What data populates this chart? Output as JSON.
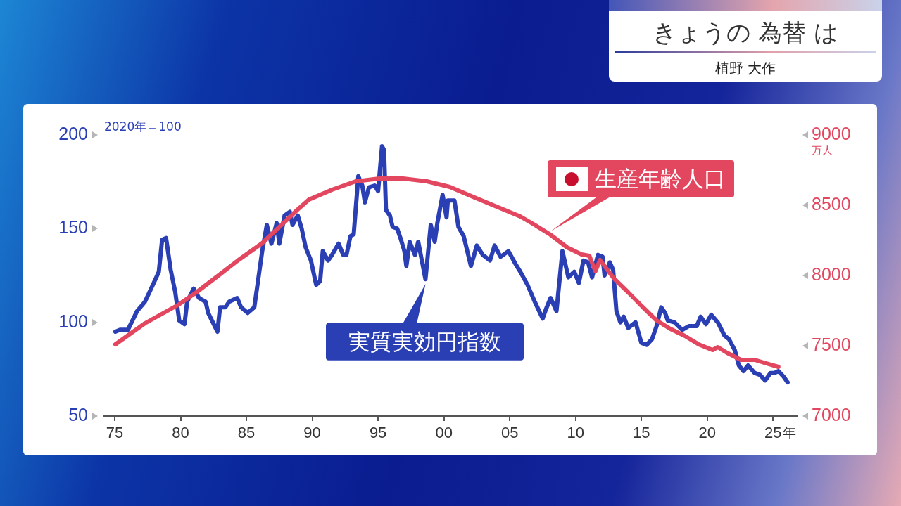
{
  "chart_data": {
    "type": "line",
    "title": "きょうの 為替 は",
    "subtitle": "植野 大作",
    "xlabel": "年",
    "ylabel": "2020年＝100",
    "y2label": "万人",
    "xlim": [
      1974.2,
      2026.8
    ],
    "xticks": [
      {
        "value": 1975,
        "label": "75"
      },
      {
        "value": 1980,
        "label": "80"
      },
      {
        "value": 1985,
        "label": "85"
      },
      {
        "value": 1990,
        "label": "90"
      },
      {
        "value": 1995,
        "label": "95"
      },
      {
        "value": 2000,
        "label": "00"
      },
      {
        "value": 2005,
        "label": "05"
      },
      {
        "value": 2010,
        "label": "10"
      },
      {
        "value": 2015,
        "label": "15"
      },
      {
        "value": 2020,
        "label": "20"
      },
      {
        "value": 2025,
        "label": "25"
      }
    ],
    "ylim": [
      50,
      200
    ],
    "yticks": [
      50,
      100,
      150,
      200
    ],
    "y2lim": [
      7000,
      9000
    ],
    "y2ticks": [
      7000,
      7500,
      8000,
      8500,
      9000
    ],
    "series": [
      {
        "name": "実質実効円指数",
        "color": "#2b3fb5",
        "x": [
          1975.05,
          1975.4,
          1976.0,
          1976.7,
          1977.3,
          1977.9,
          1978.35,
          1978.6,
          1978.9,
          1979.25,
          1979.6,
          1979.9,
          1980.3,
          1980.5,
          1981.0,
          1981.4,
          1981.9,
          1982.1,
          1982.45,
          1982.8,
          1983.0,
          1983.4,
          1983.7,
          1984.3,
          1984.6,
          1985.1,
          1985.6,
          1985.9,
          1986.2,
          1986.55,
          1986.9,
          1987.3,
          1987.5,
          1987.9,
          1988.3,
          1988.5,
          1988.9,
          1989.2,
          1989.5,
          1989.9,
          1990.3,
          1990.6,
          1990.8,
          1991.2,
          1991.5,
          1992.0,
          1992.35,
          1992.6,
          1992.9,
          1993.15,
          1993.5,
          1993.8,
          1994.0,
          1994.3,
          1994.75,
          1995.0,
          1995.3,
          1995.45,
          1995.6,
          1995.9,
          1996.1,
          1996.45,
          1996.7,
          1997.0,
          1997.15,
          1997.4,
          1997.8,
          1998.05,
          1998.6,
          1999.0,
          1999.3,
          1999.5,
          1999.9,
          2000.2,
          2000.3,
          2000.8,
          2001.1,
          2001.5,
          2002.05,
          2002.5,
          2002.95,
          2003.5,
          2003.85,
          2004.3,
          2004.9,
          2005.45,
          2005.8,
          2006.35,
          2006.9,
          2007.5,
          2007.75,
          2008.1,
          2008.55,
          2009.0,
          2009.45,
          2009.9,
          2010.25,
          2010.6,
          2010.95,
          2011.25,
          2011.7,
          2012.05,
          2012.2,
          2012.6,
          2012.85,
          2013.1,
          2013.4,
          2013.65,
          2014.0,
          2014.55,
          2015.0,
          2015.4,
          2015.8,
          2016.15,
          2016.5,
          2016.8,
          2017.0,
          2017.5,
          2018.1,
          2018.6,
          2019.2,
          2019.5,
          2019.9,
          2020.3,
          2020.8,
          2021.3,
          2021.65,
          2022.1,
          2022.4,
          2022.75,
          2023.1,
          2023.6,
          2024.0,
          2024.4,
          2024.8,
          2025.1,
          2025.4,
          2025.8,
          2026.1
        ],
        "values": [
          95,
          96,
          96,
          106,
          111,
          120,
          127,
          144,
          145,
          128,
          116,
          101,
          99,
          111,
          118,
          113,
          111,
          105,
          100,
          95,
          108,
          108,
          111,
          113,
          108,
          105,
          108,
          123,
          138,
          152,
          142,
          153,
          142,
          157,
          159,
          152,
          157,
          150,
          140,
          133,
          120,
          122,
          138,
          133,
          136,
          142,
          136,
          136,
          146,
          147,
          178,
          173,
          164,
          172,
          173,
          170,
          194,
          192,
          160,
          157,
          151,
          150,
          145,
          138,
          130,
          143,
          136,
          143,
          123,
          152,
          143,
          153,
          168,
          156,
          165,
          165,
          151,
          146,
          130,
          141,
          136,
          133,
          141,
          135,
          138,
          131,
          127,
          120,
          111,
          102,
          107,
          113,
          106,
          138,
          124,
          127,
          121,
          133,
          132,
          124,
          136,
          135,
          125,
          132,
          128,
          106,
          100,
          103,
          97,
          100,
          89,
          88,
          91,
          98,
          108,
          105,
          101,
          100,
          96,
          98,
          98,
          103,
          99,
          104,
          100,
          93,
          91,
          85,
          77,
          74,
          77,
          73,
          72,
          69,
          73,
          73,
          74,
          71,
          68
        ]
      },
      {
        "name": "生産年齢人口",
        "color": "#e2475f",
        "axis": "y2",
        "x": [
          1975.05,
          1977.3,
          1979.8,
          1981.2,
          1982.6,
          1984.4,
          1986.2,
          1988.0,
          1988.9,
          1989.75,
          1991.5,
          1993.3,
          1995.1,
          1996.9,
          1998.7,
          2000.45,
          2002.2,
          2004.0,
          2005.8,
          2006.9,
          2008.1,
          2009.35,
          2010.45,
          2011.05,
          2011.5,
          2011.85,
          2012.9,
          2014.0,
          2015.05,
          2016.15,
          2017.2,
          2018.3,
          2019.35,
          2020.4,
          2020.8,
          2021.5,
          2022.55,
          2023.6,
          2024.3,
          2025.4
        ],
        "values": [
          7510,
          7660,
          7790,
          7880,
          7980,
          8110,
          8230,
          8390,
          8470,
          8540,
          8610,
          8670,
          8690,
          8690,
          8670,
          8630,
          8560,
          8490,
          8420,
          8360,
          8290,
          8200,
          8150,
          8140,
          8030,
          8110,
          7980,
          7880,
          7780,
          7680,
          7620,
          7570,
          7510,
          7470,
          7490,
          7450,
          7400,
          7400,
          7380,
          7350
        ]
      }
    ]
  }
}
